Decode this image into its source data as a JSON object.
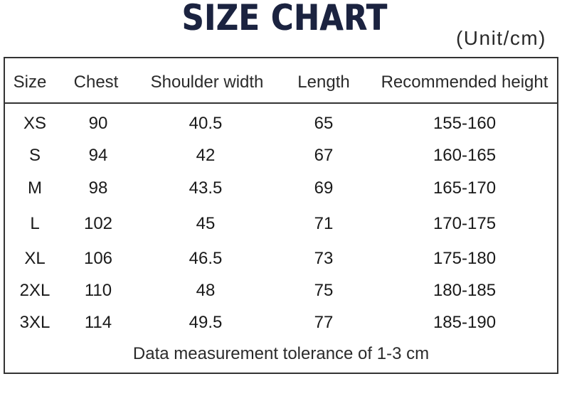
{
  "title": "SIZE CHART",
  "unit": "(Unit/cm)",
  "headers": [
    "Size",
    "Chest",
    "Shoulder width",
    "Length",
    "Recommended height"
  ],
  "rows": [
    [
      "XS",
      "90",
      "40.5",
      "65",
      "155-160"
    ],
    [
      "S",
      "94",
      "42",
      "67",
      "160-165"
    ],
    [
      "M",
      "98",
      "43.5",
      "69",
      "165-170"
    ],
    [
      "L",
      "102",
      "45",
      "71",
      "170-175"
    ],
    [
      "XL",
      "106",
      "46.5",
      "73",
      "175-180"
    ],
    [
      "2XL",
      "110",
      "48",
      "75",
      "180-185"
    ],
    [
      "3XL",
      "114",
      "49.5",
      "77",
      "185-190"
    ]
  ],
  "note": "Data measurement tolerance of 1-3 cm"
}
